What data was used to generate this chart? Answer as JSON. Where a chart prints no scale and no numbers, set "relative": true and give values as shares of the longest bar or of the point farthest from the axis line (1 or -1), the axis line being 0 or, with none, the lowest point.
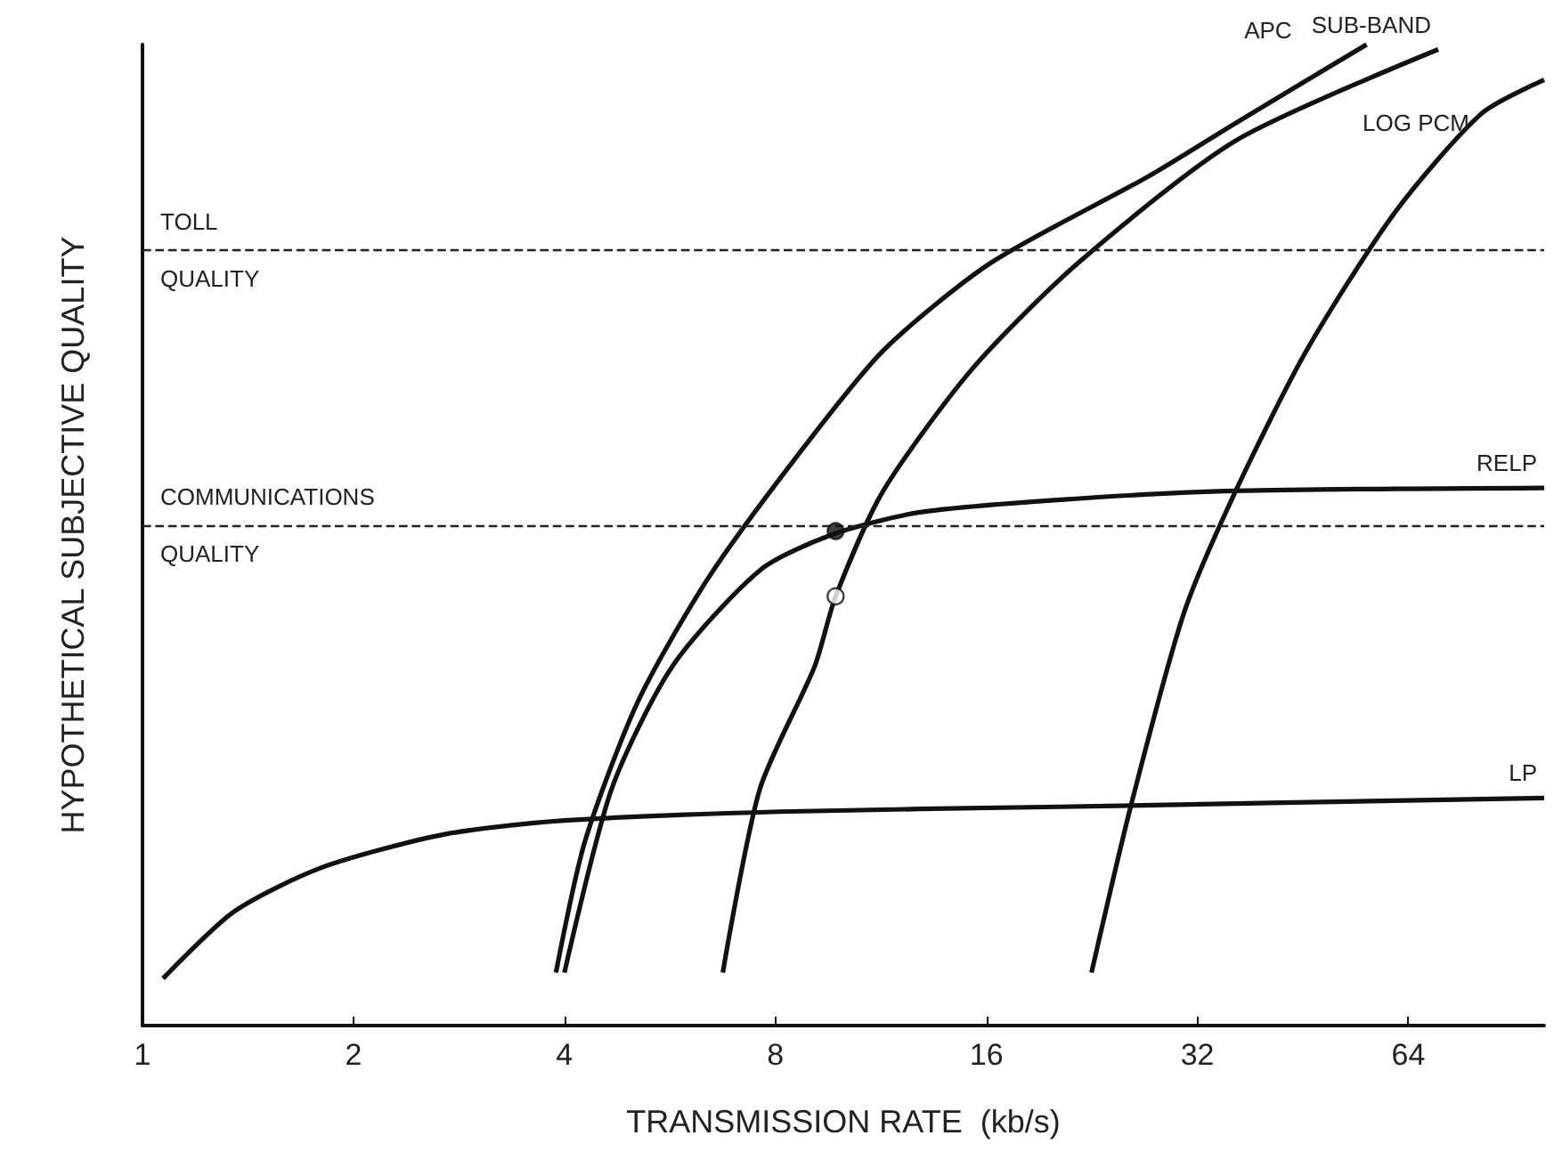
{
  "chart_data": {
    "type": "line",
    "relative": true,
    "xlabel": "TRANSMISSION RATE  (kb/s)",
    "ylabel": "HYPOTHETICAL SUBJECTIVE QUALITY",
    "log": "x",
    "xlim": [
      1,
      100
    ],
    "xticks": [
      1,
      2,
      4,
      8,
      16,
      32,
      64
    ],
    "grid": false,
    "legend": false,
    "marker": "none",
    "tick_labels": "x",
    "series": [
      {
        "name": "APC",
        "color": "#111111",
        "x": [
          3.89,
          4.28,
          5.09,
          6.4,
          8.58,
          11.4,
          16.2,
          27.3,
          36.3,
          55.8
        ],
        "values": [
          0.054,
          0.188,
          0.33,
          0.455,
          0.58,
          0.688,
          0.777,
          0.866,
          0.92,
          1.0
        ]
      },
      {
        "name": "SUB-BAND",
        "color": "#111111",
        "x": [
          6.73,
          7.6,
          9.1,
          9.75,
          11.4,
          15.3,
          21.6,
          36.3,
          70.6
        ],
        "values": [
          0.054,
          0.241,
          0.366,
          0.4375,
          0.545,
          0.67,
          0.777,
          0.902,
          0.995
        ]
      },
      {
        "name": "LOG PCM",
        "color": "#111111",
        "x": [
          22.6,
          25.7,
          30.6,
          36.3,
          45.8,
          61.4,
          81.5,
          100
        ],
        "values": [
          0.054,
          0.223,
          0.42,
          0.545,
          0.688,
          0.83,
          0.93,
          0.964
        ]
      },
      {
        "name": "RELP",
        "color": "#111111",
        "x": [
          4.0,
          4.67,
          5.7,
          7.6,
          9.6,
          12.8,
          20.4,
          36.3,
          100
        ],
        "values": [
          0.054,
          0.241,
          0.366,
          0.464,
          0.5,
          0.523,
          0.536,
          0.545,
          0.548
        ]
      },
      {
        "name": "LP",
        "color": "#111111",
        "x": [
          1.07,
          1.35,
          1.8,
          2.7,
          4.0,
          8.1,
          20.4,
          100
        ],
        "values": [
          0.048,
          0.116,
          0.161,
          0.195,
          0.209,
          0.218,
          0.223,
          0.232
        ]
      },
      {
        "type": "scatter",
        "marker": "circle",
        "color": "#111111",
        "x": [
          9.75
        ],
        "values": [
          0.504
        ]
      },
      {
        "type": "scatter",
        "marker": "circle",
        "color": "#ffffff",
        "x": [
          9.75
        ],
        "values": [
          0.4375
        ]
      }
    ],
    "ref_lines": [
      {
        "axis": "y",
        "value": 0.79,
        "label": "TOLL QUALITY",
        "line_style": "dashed"
      },
      {
        "axis": "y",
        "value": 0.509,
        "label": "COMMUNICATIONS QUALITY",
        "line_style": "dashed"
      }
    ]
  }
}
